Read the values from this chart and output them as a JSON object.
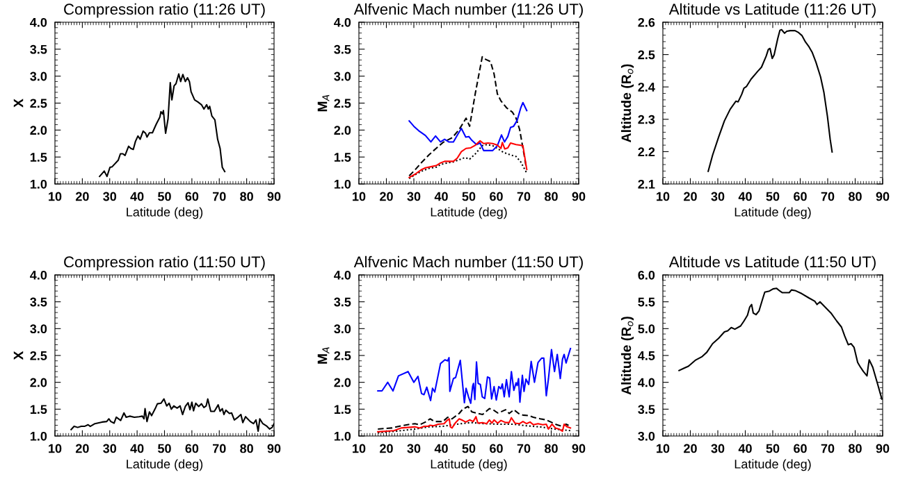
{
  "chart_data": [
    {
      "type": "line",
      "title": "Compression ratio (11:26 UT)",
      "xlabel": "Latitude (deg)",
      "ylabel": "X",
      "xlim": [
        10,
        90
      ],
      "ylim": [
        1.0,
        4.0
      ],
      "xticks": [
        10,
        20,
        30,
        40,
        50,
        60,
        70,
        80,
        90
      ],
      "yticks": [
        {
          "value": 1.0,
          "label": "1.0"
        },
        1.5,
        {
          "value": 2.0,
          "label": "2.0"
        },
        2.5,
        {
          "value": 3.0,
          "label": "3.0"
        },
        3.5,
        {
          "value": 4.0,
          "label": "4.0"
        }
      ],
      "grid": false,
      "series": [
        {
          "color": "#000000",
          "line_style": "solid",
          "x": [
            26.3,
            28.0,
            29.0,
            30.1,
            30.9,
            33.1,
            33.9,
            34.8,
            35.6,
            36.9,
            37.7,
            38.6,
            39.4,
            40.3,
            41.1,
            42.2,
            43.1,
            43.6,
            44.5,
            45.6,
            46.2,
            47.0,
            48.3,
            48.7,
            49.3,
            49.6,
            50.4,
            51.3,
            52.1,
            52.7,
            53.5,
            54.2,
            55.2,
            55.9,
            56.7,
            57.6,
            58.4,
            59.1,
            59.7,
            61.0,
            62.2,
            63.5,
            64.4,
            65.4,
            66.0,
            66.5,
            67.3,
            68.4,
            69.4,
            70.3,
            71.1,
            72.0
          ],
          "values": [
            1.14,
            1.24,
            1.14,
            1.31,
            1.32,
            1.44,
            1.56,
            1.56,
            1.53,
            1.7,
            1.66,
            1.64,
            1.79,
            1.89,
            1.83,
            1.98,
            1.94,
            1.87,
            1.95,
            1.95,
            2.02,
            2.11,
            2.24,
            2.34,
            2.3,
            2.36,
            1.94,
            2.21,
            2.88,
            2.56,
            2.82,
            2.86,
            3.04,
            2.9,
            3.03,
            2.9,
            2.97,
            2.9,
            2.71,
            2.56,
            2.52,
            2.47,
            2.39,
            2.47,
            2.39,
            2.44,
            2.26,
            2.19,
            1.83,
            1.66,
            1.31,
            1.23
          ]
        }
      ]
    },
    {
      "type": "line",
      "title": "Alfvenic Mach number (11:26 UT)",
      "xlabel": "Latitude (deg)",
      "ylabel": "M$_{A}$",
      "xlim": [
        10,
        90
      ],
      "ylim": [
        1.0,
        4.0
      ],
      "xticks": [
        10,
        20,
        30,
        40,
        50,
        60,
        70,
        80,
        90
      ],
      "yticks": [
        {
          "value": 1.0,
          "label": "1.0"
        },
        1.5,
        {
          "value": 2.0,
          "label": "2.0"
        },
        2.5,
        {
          "value": 3.0,
          "label": "3.0"
        },
        3.5,
        {
          "value": 4.0,
          "label": "4.0"
        }
      ],
      "grid": false,
      "series": [
        {
          "color": "#000000",
          "line_style": "dashed",
          "x": [
            28.3,
            30.4,
            33.0,
            35.5,
            38.1,
            40.6,
            44.0,
            46.5,
            49.0,
            50.3,
            52.4,
            54.9,
            56.2,
            57.9,
            59.2,
            60.4,
            61.7,
            63.8,
            65.9,
            67.2,
            68.5,
            70.0,
            71.0
          ],
          "values": [
            1.15,
            1.26,
            1.41,
            1.54,
            1.66,
            1.77,
            1.86,
            2.01,
            2.22,
            2.07,
            2.69,
            3.36,
            3.31,
            3.27,
            3.04,
            2.67,
            2.54,
            2.41,
            2.33,
            2.22,
            2.01,
            1.58,
            1.28
          ]
        },
        {
          "color": "#000000",
          "line_style": "dotted",
          "x": [
            28.3,
            30.4,
            33.0,
            35.5,
            38.1,
            39.7,
            42.2,
            44.4,
            46.5,
            48.6,
            50.3,
            52.4,
            54.9,
            56.6,
            58.7,
            60.4,
            62.5,
            65.1,
            67.2,
            68.9,
            71.0
          ],
          "values": [
            1.1,
            1.17,
            1.24,
            1.29,
            1.31,
            1.36,
            1.39,
            1.41,
            1.45,
            1.49,
            1.46,
            1.56,
            1.71,
            1.73,
            1.71,
            1.66,
            1.59,
            1.54,
            1.51,
            1.41,
            1.21
          ]
        },
        {
          "color": "#0000ff",
          "line_style": "solid",
          "x": [
            28.3,
            30.0,
            31.7,
            34.2,
            36.2,
            37.9,
            39.7,
            41.2,
            42.7,
            44.4,
            46.1,
            47.3,
            48.9,
            50.0,
            51.1,
            52.8,
            54.1,
            55.4,
            57.0,
            58.7,
            60.4,
            61.9,
            63.0,
            64.2,
            65.2,
            66.3,
            67.6,
            68.9,
            69.7,
            71.1
          ],
          "values": [
            2.17,
            2.07,
            1.99,
            1.9,
            1.78,
            1.89,
            1.78,
            1.83,
            1.78,
            1.78,
            1.93,
            2.03,
            1.87,
            1.88,
            1.81,
            1.73,
            1.76,
            1.62,
            1.62,
            1.62,
            1.71,
            1.91,
            1.78,
            1.88,
            2.05,
            2.07,
            2.18,
            2.41,
            2.51,
            2.36
          ]
        },
        {
          "color": "#ff0000",
          "line_style": "solid",
          "x": [
            28.3,
            30.4,
            32.6,
            34.2,
            36.2,
            38.1,
            39.7,
            41.2,
            42.2,
            44.4,
            45.8,
            47.3,
            49.0,
            50.7,
            52.4,
            54.1,
            55.4,
            57.0,
            58.7,
            60.4,
            61.7,
            62.2,
            63.1,
            64.2,
            65.2,
            67.2,
            68.5,
            69.7,
            71.1
          ],
          "values": [
            1.12,
            1.18,
            1.26,
            1.3,
            1.32,
            1.34,
            1.39,
            1.42,
            1.42,
            1.42,
            1.48,
            1.6,
            1.66,
            1.67,
            1.72,
            1.8,
            1.75,
            1.76,
            1.75,
            1.72,
            1.66,
            1.77,
            1.65,
            1.67,
            1.76,
            1.73,
            1.72,
            1.71,
            1.27
          ]
        }
      ]
    },
    {
      "type": "line",
      "title": "Altitude vs Latitude (11:26 UT)",
      "xlabel": "Latitude (deg)",
      "ylabel": "Altitude (R$_{o}$)",
      "xlim": [
        10,
        90
      ],
      "ylim": [
        2.1,
        2.6
      ],
      "xticks": [
        10,
        20,
        30,
        40,
        50,
        60,
        70,
        80,
        90
      ],
      "yticks": [
        2.1,
        2.2,
        2.3,
        2.4,
        2.5,
        2.6
      ],
      "grid": false,
      "series": [
        {
          "color": "#000000",
          "line_style": "solid",
          "x": [
            26.5,
            28.1,
            30.3,
            32.4,
            34.5,
            36.6,
            37.4,
            38.7,
            39.5,
            40.4,
            42.1,
            44.6,
            45.9,
            47.6,
            48.4,
            49.0,
            49.8,
            50.5,
            51.8,
            52.6,
            53.2,
            54.3,
            55.1,
            56.4,
            58.1,
            59.4,
            60.6,
            61.9,
            63.2,
            64.4,
            65.7,
            67.4,
            68.6,
            69.9,
            70.9,
            71.6
          ],
          "values": [
            2.139,
            2.189,
            2.245,
            2.295,
            2.331,
            2.356,
            2.354,
            2.377,
            2.396,
            2.401,
            2.424,
            2.449,
            2.461,
            2.495,
            2.516,
            2.519,
            2.488,
            2.499,
            2.549,
            2.575,
            2.577,
            2.566,
            2.572,
            2.574,
            2.574,
            2.568,
            2.559,
            2.539,
            2.524,
            2.506,
            2.477,
            2.431,
            2.384,
            2.309,
            2.238,
            2.199
          ]
        }
      ]
    },
    {
      "type": "line",
      "title": "Compression ratio (11:50 UT)",
      "xlabel": "Latitude (deg)",
      "ylabel": "X",
      "xlim": [
        10,
        90
      ],
      "ylim": [
        1.0,
        4.0
      ],
      "xticks": [
        10,
        20,
        30,
        40,
        50,
        60,
        70,
        80,
        90
      ],
      "yticks": [
        {
          "value": 1.0,
          "label": "1.0"
        },
        1.5,
        {
          "value": 2.0,
          "label": "2.0"
        },
        2.5,
        {
          "value": 3.0,
          "label": "3.0"
        },
        3.5,
        {
          "value": 4.0,
          "label": "4.0"
        }
      ],
      "grid": false,
      "series": [
        {
          "color": "#000000",
          "line_style": "solid",
          "x": [
            15.9,
            17.0,
            18.3,
            19.6,
            20.8,
            22.1,
            22.9,
            24.6,
            27.2,
            28.9,
            29.7,
            30.4,
            31.6,
            32.4,
            34.0,
            35.2,
            36.0,
            37.3,
            39.0,
            40.7,
            41.9,
            42.5,
            42.9,
            43.6,
            44.5,
            45.3,
            46.6,
            47.4,
            48.7,
            49.8,
            50.8,
            51.7,
            52.5,
            53.4,
            54.6,
            55.7,
            56.6,
            57.6,
            58.6,
            59.3,
            60.0,
            60.6,
            61.4,
            62.5,
            63.5,
            64.4,
            65.2,
            65.8,
            66.9,
            68.2,
            69.6,
            70.3,
            71.1,
            71.7,
            72.4,
            73.7,
            74.5,
            75.5,
            76.6,
            77.9,
            78.6,
            79.6,
            81.3,
            82.5,
            83.4,
            84.2,
            84.8,
            85.9,
            87.2,
            88.4,
            89.3,
            90.0
          ],
          "values": [
            1.12,
            1.18,
            1.16,
            1.18,
            1.18,
            1.21,
            1.18,
            1.23,
            1.26,
            1.27,
            1.32,
            1.27,
            1.24,
            1.35,
            1.29,
            1.43,
            1.35,
            1.37,
            1.35,
            1.36,
            1.37,
            1.32,
            1.51,
            1.27,
            1.45,
            1.38,
            1.51,
            1.6,
            1.61,
            1.69,
            1.56,
            1.61,
            1.5,
            1.56,
            1.52,
            1.56,
            1.4,
            1.55,
            1.62,
            1.49,
            1.63,
            1.47,
            1.61,
            1.55,
            1.6,
            1.53,
            1.56,
            1.69,
            1.46,
            1.46,
            1.58,
            1.46,
            1.51,
            1.4,
            1.48,
            1.42,
            1.43,
            1.3,
            1.34,
            1.4,
            1.25,
            1.36,
            1.27,
            1.23,
            1.3,
            1.09,
            1.32,
            1.23,
            1.19,
            1.13,
            1.16,
            1.23
          ]
        }
      ]
    },
    {
      "type": "line",
      "title": "Alfvenic Mach number (11:50 UT)",
      "xlabel": "Latitude (deg)",
      "ylabel": "M$_{A}$",
      "xlim": [
        10,
        90
      ],
      "ylim": [
        1.0,
        4.0
      ],
      "xticks": [
        10,
        20,
        30,
        40,
        50,
        60,
        70,
        80,
        90
      ],
      "yticks": [
        {
          "value": 1.0,
          "label": "1.0"
        },
        1.5,
        {
          "value": 2.0,
          "label": "2.0"
        },
        2.5,
        {
          "value": 3.0,
          "label": "3.0"
        },
        3.5,
        {
          "value": 4.0,
          "label": "4.0"
        }
      ],
      "grid": false,
      "series": [
        {
          "color": "#000000",
          "line_style": "dashed",
          "x": [
            16.9,
            22.0,
            25.4,
            28.8,
            30.4,
            32.1,
            34.2,
            35.9,
            37.6,
            40.6,
            42.3,
            43.9,
            46.5,
            47.8,
            49.7,
            51.1,
            53.3,
            55.0,
            57.5,
            59.1,
            60.5,
            61.7,
            63.4,
            64.7,
            66.4,
            68.1,
            69.7,
            71.8,
            73.5,
            76.0,
            78.2,
            80.3,
            82.0,
            84.1,
            85.4,
            87.0
          ],
          "values": [
            1.13,
            1.15,
            1.19,
            1.22,
            1.23,
            1.21,
            1.26,
            1.32,
            1.27,
            1.27,
            1.35,
            1.32,
            1.42,
            1.5,
            1.55,
            1.45,
            1.42,
            1.4,
            1.51,
            1.48,
            1.43,
            1.45,
            1.49,
            1.42,
            1.49,
            1.42,
            1.39,
            1.38,
            1.35,
            1.32,
            1.3,
            1.25,
            1.21,
            1.18,
            1.22,
            1.18
          ]
        },
        {
          "color": "#000000",
          "line_style": "dotted",
          "x": [
            16.9,
            23.7,
            30.4,
            35.5,
            40.6,
            45.6,
            50.7,
            55.8,
            60.9,
            66.0,
            71.0,
            76.0,
            81.2,
            87.0
          ],
          "values": [
            1.06,
            1.09,
            1.13,
            1.17,
            1.18,
            1.22,
            1.25,
            1.23,
            1.22,
            1.22,
            1.19,
            1.17,
            1.13,
            1.1
          ]
        },
        {
          "color": "#0000ff",
          "line_style": "solid",
          "x": [
            16.9,
            18.4,
            20.5,
            22.4,
            24.4,
            27.9,
            30.0,
            31.5,
            32.8,
            33.7,
            34.7,
            36.1,
            36.8,
            37.6,
            39.7,
            41.3,
            42.3,
            42.8,
            43.1,
            44.4,
            45.2,
            46.9,
            48.4,
            49.0,
            49.9,
            50.7,
            51.4,
            51.7,
            52.2,
            52.8,
            53.4,
            54.2,
            54.9,
            55.8,
            56.8,
            57.6,
            58.3,
            59.2,
            60.0,
            60.9,
            61.7,
            62.2,
            62.9,
            63.7,
            64.7,
            65.5,
            66.4,
            67.2,
            67.6,
            68.1,
            68.6,
            69.5,
            70.1,
            70.8,
            71.8,
            72.7,
            73.9,
            75.2,
            76.5,
            77.3,
            78.2,
            79.0,
            80.1,
            81.2,
            82.2,
            83.3,
            84.1,
            84.7,
            85.4,
            87.0
          ],
          "values": [
            1.84,
            1.84,
            2.0,
            1.84,
            2.12,
            2.2,
            2.0,
            2.11,
            1.79,
            1.77,
            1.91,
            1.66,
            1.89,
            1.82,
            2.35,
            2.42,
            2.4,
            2.46,
            1.83,
            2.07,
            2.09,
            2.41,
            1.62,
            1.89,
            1.73,
            1.61,
            1.93,
            1.98,
            1.68,
            2.38,
            1.98,
            1.96,
            1.73,
            1.7,
            2.1,
            2.08,
            1.69,
            1.92,
            1.67,
            1.92,
            1.88,
            1.97,
            1.73,
            2.05,
            1.73,
            2.2,
            1.85,
            1.99,
            1.94,
            2.07,
            1.63,
            2.13,
            1.83,
            2.06,
            1.96,
            2.39,
            2.0,
            2.37,
            2.45,
            2.45,
            1.75,
            2.07,
            2.61,
            2.2,
            2.52,
            2.07,
            2.43,
            2.52,
            2.36,
            2.63
          ]
        },
        {
          "color": "#ff0000",
          "line_style": "solid",
          "x": [
            16.9,
            20.3,
            22.8,
            25.4,
            27.9,
            30.4,
            32.1,
            33.8,
            35.1,
            35.9,
            37.2,
            38.9,
            41.0,
            42.3,
            42.9,
            43.3,
            43.9,
            45.2,
            46.5,
            47.8,
            48.9,
            50.3,
            51.6,
            52.6,
            53.3,
            55.0,
            56.5,
            57.5,
            58.4,
            59.2,
            60.5,
            61.7,
            63.4,
            64.7,
            65.5,
            66.8,
            68.5,
            69.7,
            71.0,
            72.3,
            73.5,
            75.2,
            76.9,
            78.2,
            79.0,
            80.3,
            81.5,
            82.8,
            84.1,
            84.7,
            85.8,
            87.0
          ],
          "values": [
            1.08,
            1.09,
            1.1,
            1.15,
            1.16,
            1.17,
            1.15,
            1.18,
            1.18,
            1.2,
            1.19,
            1.22,
            1.23,
            1.3,
            1.32,
            1.17,
            1.15,
            1.25,
            1.32,
            1.29,
            1.26,
            1.3,
            1.27,
            1.36,
            1.24,
            1.25,
            1.23,
            1.3,
            1.24,
            1.3,
            1.24,
            1.29,
            1.25,
            1.25,
            1.34,
            1.24,
            1.23,
            1.27,
            1.23,
            1.26,
            1.21,
            1.23,
            1.21,
            1.22,
            1.13,
            1.22,
            1.15,
            1.13,
            1.09,
            1.22,
            1.17,
            1.15
          ]
        }
      ]
    },
    {
      "type": "line",
      "title": "Altitude vs Latitude (11:50 UT)",
      "xlabel": "Latitude (deg)",
      "ylabel": "Altitude (R$_{o}$)",
      "xlim": [
        10,
        90
      ],
      "ylim": [
        3.0,
        6.0
      ],
      "xticks": [
        10,
        20,
        30,
        40,
        50,
        60,
        70,
        80,
        90
      ],
      "yticks": [
        {
          "value": 3.0,
          "label": "3.0"
        },
        3.5,
        {
          "value": 4.0,
          "label": "4.0"
        },
        4.5,
        {
          "value": 5.0,
          "label": "5.0"
        },
        5.5,
        {
          "value": 6.0,
          "label": "6.0"
        }
      ],
      "grid": false,
      "series": [
        {
          "color": "#000000",
          "line_style": "solid",
          "x": [
            15.9,
            17.6,
            19.3,
            21.8,
            24.3,
            26.0,
            28.1,
            30.3,
            32.4,
            33.6,
            34.9,
            36.2,
            38.3,
            39.5,
            40.8,
            41.6,
            42.3,
            42.9,
            43.9,
            45.0,
            46.3,
            47.1,
            48.8,
            50.1,
            51.4,
            52.6,
            53.5,
            54.7,
            56.0,
            56.8,
            58.1,
            60.6,
            63.2,
            65.3,
            66.1,
            67.2,
            69.1,
            71.2,
            73.3,
            75.0,
            76.2,
            77.5,
            78.5,
            79.6,
            80.9,
            81.7,
            83.0,
            84.3,
            84.7,
            85.1,
            86.4,
            88.1,
            89.7
          ],
          "values": [
            4.22,
            4.26,
            4.3,
            4.41,
            4.48,
            4.56,
            4.72,
            4.82,
            4.94,
            4.96,
            5.02,
            4.99,
            5.05,
            5.14,
            5.25,
            5.4,
            5.45,
            5.29,
            5.26,
            5.33,
            5.55,
            5.68,
            5.7,
            5.74,
            5.75,
            5.7,
            5.67,
            5.67,
            5.67,
            5.72,
            5.71,
            5.65,
            5.57,
            5.51,
            5.45,
            5.5,
            5.4,
            5.29,
            5.14,
            5.03,
            4.86,
            4.7,
            4.72,
            4.65,
            4.37,
            4.3,
            4.2,
            4.12,
            4.28,
            4.42,
            4.28,
            3.98,
            3.69
          ]
        }
      ]
    }
  ]
}
